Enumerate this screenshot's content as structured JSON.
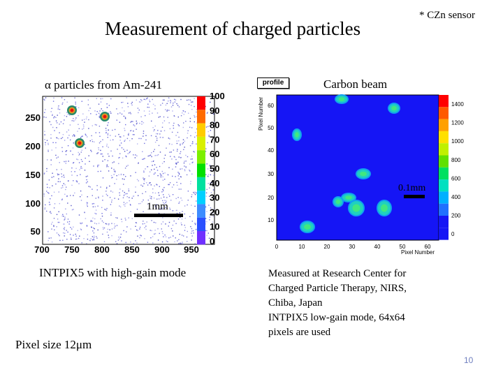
{
  "title": "Measurement of charged particles",
  "sensor_note": "* CZn sensor",
  "left_panel": {
    "heading": "α particles from Am-241",
    "scale_label": "1mm",
    "caption": "INTPIX5 with high-gain mode",
    "pixel_size": "Pixel size 12μm",
    "x_ticks": [
      "700",
      "750",
      "800",
      "850",
      "900",
      "950"
    ],
    "y_ticks": [
      "250",
      "200",
      "150",
      "100",
      "50"
    ],
    "colorbar_ticks": [
      "100",
      "90",
      "80",
      "70",
      "60",
      "50",
      "40",
      "30",
      "20",
      "10",
      "0"
    ]
  },
  "right_panel": {
    "heading": "Carbon beam",
    "profile_label": "profile",
    "scale_label": "0.1mm",
    "x_axis_label": "Pixel Number",
    "y_axis_label": "Pixel Number",
    "x_ticks": [
      "0",
      "10",
      "20",
      "30",
      "40",
      "50",
      "60"
    ],
    "y_ticks": [
      "60",
      "50",
      "40",
      "30",
      "20",
      "10"
    ],
    "colorbar_ticks": [
      "1400",
      "1200",
      "1000",
      "800",
      "600",
      "400",
      "200",
      "0"
    ],
    "caption_lines": [
      "Measured at Research Center for",
      "Charged Particle Therapy, NIRS,",
      "Chiba, Japan",
      "INTPIX5 low-gain mode, 64x64",
      "pixels are used"
    ]
  },
  "page_number": "10"
}
